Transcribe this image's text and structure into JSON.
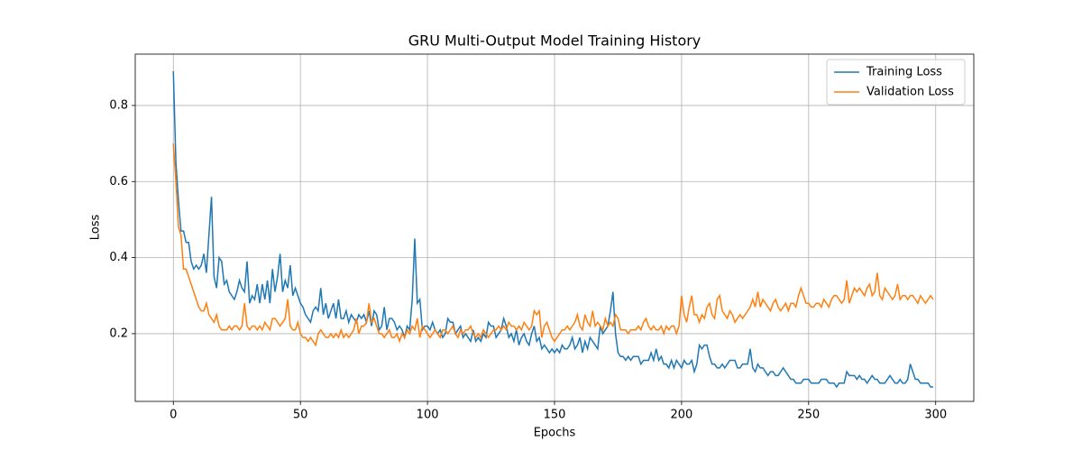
{
  "chart_data": {
    "type": "line",
    "title": "GRU Multi-Output Model Training History",
    "xlabel": "Epochs",
    "ylabel": "Loss",
    "x": [
      0,
      1,
      2,
      3,
      4,
      5,
      6,
      7,
      8,
      9,
      10,
      11,
      12,
      13,
      14,
      15,
      16,
      17,
      18,
      19,
      20,
      21,
      22,
      23,
      24,
      25,
      26,
      27,
      28,
      29,
      30,
      31,
      32,
      33,
      34,
      35,
      36,
      37,
      38,
      39,
      40,
      41,
      42,
      43,
      44,
      45,
      46,
      47,
      48,
      49,
      50,
      51,
      52,
      53,
      54,
      55,
      56,
      57,
      58,
      59,
      60,
      61,
      62,
      63,
      64,
      65,
      66,
      67,
      68,
      69,
      70,
      71,
      72,
      73,
      74,
      75,
      76,
      77,
      78,
      79,
      80,
      81,
      82,
      83,
      84,
      85,
      86,
      87,
      88,
      89,
      90,
      91,
      92,
      93,
      94,
      95,
      96,
      97,
      98,
      99,
      100,
      101,
      102,
      103,
      104,
      105,
      106,
      107,
      108,
      109,
      110,
      111,
      112,
      113,
      114,
      115,
      116,
      117,
      118,
      119,
      120,
      121,
      122,
      123,
      124,
      125,
      126,
      127,
      128,
      129,
      130,
      131,
      132,
      133,
      134,
      135,
      136,
      137,
      138,
      139,
      140,
      141,
      142,
      143,
      144,
      145,
      146,
      147,
      148,
      149,
      150,
      151,
      152,
      153,
      154,
      155,
      156,
      157,
      158,
      159,
      160,
      161,
      162,
      163,
      164,
      165,
      166,
      167,
      168,
      169,
      170,
      171,
      172,
      173,
      174,
      175,
      176,
      177,
      178,
      179,
      180,
      181,
      182,
      183,
      184,
      185,
      186,
      187,
      188,
      189,
      190,
      191,
      192,
      193,
      194,
      195,
      196,
      197,
      198,
      199,
      200,
      201,
      202,
      203,
      204,
      205,
      206,
      207,
      208,
      209,
      210,
      211,
      212,
      213,
      214,
      215,
      216,
      217,
      218,
      219,
      220,
      221,
      222,
      223,
      224,
      225,
      226,
      227,
      228,
      229,
      230,
      231,
      232,
      233,
      234,
      235,
      236,
      237,
      238,
      239,
      240,
      241,
      242,
      243,
      244,
      245,
      246,
      247,
      248,
      249,
      250,
      251,
      252,
      253,
      254,
      255,
      256,
      257,
      258,
      259,
      260,
      261,
      262,
      263,
      264,
      265,
      266,
      267,
      268,
      269,
      270,
      271,
      272,
      273,
      274,
      275,
      276,
      277,
      278,
      279,
      280,
      281,
      282,
      283,
      284,
      285,
      286,
      287,
      288,
      289,
      290,
      291,
      292,
      293,
      294,
      295,
      296,
      297,
      298,
      299
    ],
    "series": [
      {
        "name": "Training Loss",
        "color": "#1f77b4",
        "values": [
          0.89,
          0.65,
          0.55,
          0.47,
          0.47,
          0.44,
          0.44,
          0.39,
          0.37,
          0.38,
          0.37,
          0.38,
          0.41,
          0.36,
          0.46,
          0.56,
          0.35,
          0.32,
          0.4,
          0.39,
          0.33,
          0.34,
          0.31,
          0.3,
          0.29,
          0.31,
          0.34,
          0.32,
          0.31,
          0.39,
          0.28,
          0.3,
          0.29,
          0.33,
          0.28,
          0.33,
          0.29,
          0.34,
          0.28,
          0.37,
          0.31,
          0.35,
          0.41,
          0.31,
          0.34,
          0.32,
          0.38,
          0.3,
          0.32,
          0.3,
          0.28,
          0.27,
          0.25,
          0.24,
          0.23,
          0.26,
          0.27,
          0.26,
          0.32,
          0.25,
          0.28,
          0.24,
          0.26,
          0.28,
          0.24,
          0.29,
          0.24,
          0.24,
          0.26,
          0.23,
          0.25,
          0.24,
          0.23,
          0.25,
          0.24,
          0.25,
          0.23,
          0.26,
          0.22,
          0.26,
          0.25,
          0.21,
          0.22,
          0.27,
          0.21,
          0.24,
          0.24,
          0.23,
          0.21,
          0.22,
          0.21,
          0.19,
          0.22,
          0.21,
          0.29,
          0.45,
          0.28,
          0.29,
          0.21,
          0.22,
          0.22,
          0.21,
          0.23,
          0.21,
          0.2,
          0.21,
          0.19,
          0.2,
          0.24,
          0.23,
          0.23,
          0.2,
          0.21,
          0.22,
          0.19,
          0.2,
          0.19,
          0.18,
          0.21,
          0.18,
          0.19,
          0.18,
          0.2,
          0.19,
          0.23,
          0.22,
          0.22,
          0.19,
          0.2,
          0.21,
          0.24,
          0.22,
          0.19,
          0.2,
          0.18,
          0.21,
          0.17,
          0.19,
          0.2,
          0.18,
          0.17,
          0.2,
          0.22,
          0.18,
          0.19,
          0.16,
          0.17,
          0.16,
          0.15,
          0.16,
          0.15,
          0.16,
          0.15,
          0.17,
          0.16,
          0.16,
          0.17,
          0.19,
          0.16,
          0.17,
          0.19,
          0.15,
          0.18,
          0.16,
          0.19,
          0.18,
          0.17,
          0.16,
          0.22,
          0.2,
          0.21,
          0.22,
          0.26,
          0.31,
          0.2,
          0.15,
          0.14,
          0.14,
          0.13,
          0.14,
          0.13,
          0.14,
          0.14,
          0.14,
          0.12,
          0.13,
          0.13,
          0.13,
          0.15,
          0.13,
          0.16,
          0.13,
          0.14,
          0.12,
          0.12,
          0.11,
          0.13,
          0.11,
          0.13,
          0.12,
          0.11,
          0.13,
          0.12,
          0.12,
          0.13,
          0.1,
          0.12,
          0.17,
          0.16,
          0.17,
          0.17,
          0.14,
          0.12,
          0.12,
          0.11,
          0.11,
          0.12,
          0.11,
          0.12,
          0.13,
          0.13,
          0.13,
          0.11,
          0.11,
          0.12,
          0.12,
          0.12,
          0.16,
          0.11,
          0.1,
          0.12,
          0.11,
          0.11,
          0.1,
          0.09,
          0.1,
          0.1,
          0.09,
          0.09,
          0.1,
          0.11,
          0.1,
          0.09,
          0.08,
          0.08,
          0.07,
          0.07,
          0.07,
          0.08,
          0.08,
          0.08,
          0.07,
          0.07,
          0.07,
          0.07,
          0.08,
          0.08,
          0.08,
          0.07,
          0.07,
          0.07,
          0.06,
          0.07,
          0.07,
          0.07,
          0.1,
          0.09,
          0.09,
          0.09,
          0.08,
          0.09,
          0.08,
          0.08,
          0.07,
          0.08,
          0.09,
          0.08,
          0.08,
          0.07,
          0.07,
          0.07,
          0.08,
          0.09,
          0.08,
          0.07,
          0.07,
          0.08,
          0.07,
          0.07,
          0.08,
          0.12,
          0.1,
          0.08,
          0.08,
          0.07,
          0.07,
          0.07,
          0.07,
          0.06,
          0.06
        ]
      },
      {
        "name": "Validation Loss",
        "color": "#ff7f0e",
        "values": [
          0.7,
          0.6,
          0.48,
          0.46,
          0.37,
          0.37,
          0.35,
          0.33,
          0.31,
          0.29,
          0.27,
          0.26,
          0.26,
          0.28,
          0.25,
          0.24,
          0.23,
          0.25,
          0.22,
          0.21,
          0.21,
          0.21,
          0.22,
          0.21,
          0.22,
          0.22,
          0.21,
          0.22,
          0.28,
          0.22,
          0.21,
          0.22,
          0.22,
          0.21,
          0.22,
          0.21,
          0.23,
          0.22,
          0.21,
          0.24,
          0.24,
          0.23,
          0.22,
          0.23,
          0.24,
          0.29,
          0.22,
          0.21,
          0.21,
          0.23,
          0.2,
          0.19,
          0.19,
          0.18,
          0.19,
          0.18,
          0.17,
          0.2,
          0.21,
          0.2,
          0.19,
          0.19,
          0.2,
          0.19,
          0.2,
          0.19,
          0.21,
          0.19,
          0.2,
          0.19,
          0.2,
          0.21,
          0.24,
          0.2,
          0.22,
          0.22,
          0.23,
          0.28,
          0.23,
          0.24,
          0.22,
          0.2,
          0.2,
          0.19,
          0.2,
          0.21,
          0.19,
          0.19,
          0.2,
          0.18,
          0.2,
          0.19,
          0.21,
          0.2,
          0.22,
          0.21,
          0.24,
          0.19,
          0.22,
          0.21,
          0.2,
          0.19,
          0.2,
          0.21,
          0.2,
          0.19,
          0.21,
          0.21,
          0.2,
          0.21,
          0.22,
          0.2,
          0.19,
          0.21,
          0.2,
          0.21,
          0.21,
          0.22,
          0.2,
          0.19,
          0.2,
          0.19,
          0.21,
          0.2,
          0.19,
          0.2,
          0.21,
          0.21,
          0.22,
          0.21,
          0.22,
          0.21,
          0.23,
          0.22,
          0.22,
          0.21,
          0.22,
          0.21,
          0.23,
          0.22,
          0.21,
          0.22,
          0.26,
          0.25,
          0.26,
          0.19,
          0.22,
          0.23,
          0.21,
          0.19,
          0.18,
          0.19,
          0.2,
          0.21,
          0.21,
          0.22,
          0.21,
          0.22,
          0.23,
          0.25,
          0.22,
          0.21,
          0.25,
          0.23,
          0.22,
          0.26,
          0.22,
          0.23,
          0.22,
          0.21,
          0.24,
          0.22,
          0.23,
          0.22,
          0.25,
          0.24,
          0.21,
          0.21,
          0.21,
          0.2,
          0.21,
          0.21,
          0.21,
          0.22,
          0.21,
          0.23,
          0.24,
          0.22,
          0.21,
          0.22,
          0.21,
          0.21,
          0.22,
          0.2,
          0.22,
          0.21,
          0.22,
          0.22,
          0.2,
          0.22,
          0.3,
          0.25,
          0.23,
          0.27,
          0.3,
          0.25,
          0.25,
          0.23,
          0.25,
          0.24,
          0.27,
          0.28,
          0.25,
          0.24,
          0.29,
          0.3,
          0.26,
          0.25,
          0.24,
          0.26,
          0.25,
          0.23,
          0.24,
          0.25,
          0.24,
          0.25,
          0.26,
          0.27,
          0.29,
          0.27,
          0.31,
          0.27,
          0.29,
          0.28,
          0.27,
          0.26,
          0.28,
          0.29,
          0.27,
          0.26,
          0.27,
          0.28,
          0.26,
          0.28,
          0.28,
          0.27,
          0.3,
          0.32,
          0.3,
          0.28,
          0.28,
          0.27,
          0.27,
          0.28,
          0.28,
          0.27,
          0.29,
          0.28,
          0.27,
          0.29,
          0.3,
          0.3,
          0.29,
          0.28,
          0.29,
          0.34,
          0.28,
          0.3,
          0.32,
          0.31,
          0.32,
          0.31,
          0.3,
          0.32,
          0.33,
          0.3,
          0.31,
          0.36,
          0.3,
          0.29,
          0.32,
          0.31,
          0.3,
          0.29,
          0.3,
          0.33,
          0.29,
          0.3,
          0.3,
          0.29,
          0.3,
          0.3,
          0.29,
          0.28,
          0.3,
          0.29,
          0.28,
          0.29,
          0.3,
          0.29
        ]
      }
    ],
    "xlim": [
      -15,
      315
    ],
    "xticks": [
      0,
      50,
      100,
      150,
      200,
      250,
      300
    ],
    "ylim": [
      0.022,
      0.935
    ],
    "yticks": [
      0.2,
      0.4,
      0.6,
      0.8
    ],
    "grid": true,
    "legend": "upper right"
  }
}
